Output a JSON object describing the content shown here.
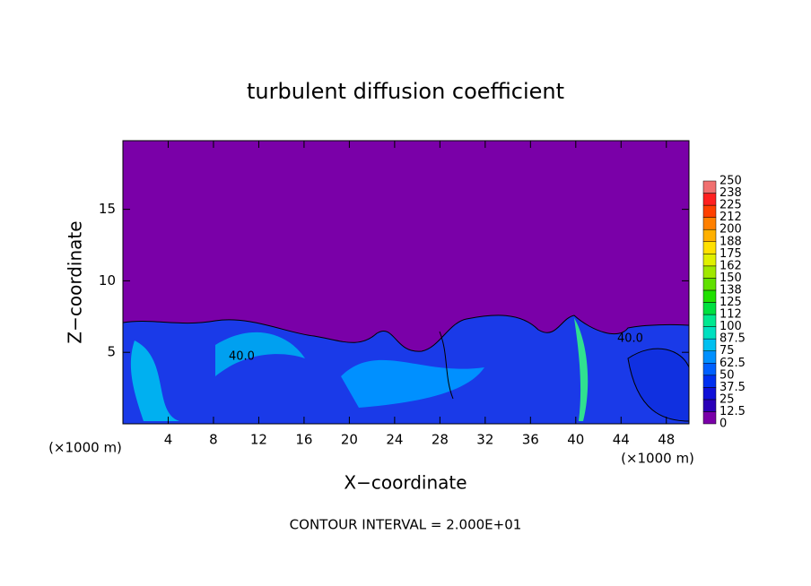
{
  "chart_data": {
    "type": "contour",
    "title": "turbulent diffusion coefficient",
    "x_label": "X−coordinate",
    "y_label": "Z−coordinate",
    "x_unit_left": "(×1000 m)",
    "x_unit_right": "(×1000 m)",
    "footnote": "CONTOUR INTERVAL = 2.000E+01",
    "contour_labels": [
      "40.0",
      "40.0"
    ],
    "xlim": [
      0,
      50
    ],
    "xticks": [
      4,
      8,
      12,
      16,
      20,
      24,
      28,
      32,
      36,
      40,
      44,
      48
    ],
    "ylim": [
      0,
      19.8
    ],
    "yticks": [
      5,
      10,
      15
    ],
    "colorbar_levels": [
      0,
      12.5,
      25,
      37.5,
      50,
      62.5,
      75,
      87.5,
      100,
      112,
      125,
      138,
      150,
      162,
      175,
      188,
      200,
      212,
      225,
      238,
      250
    ],
    "colorbar_colors": [
      "#7a00a8",
      "#2a00b8",
      "#1010d8",
      "#0030f0",
      "#0060ff",
      "#0090ff",
      "#00c0f0",
      "#00e0c0",
      "#00e890",
      "#00e040",
      "#20e000",
      "#60e000",
      "#a0e800",
      "#e0f000",
      "#ffe000",
      "#ffb000",
      "#ff8000",
      "#ff4000",
      "#ff2020",
      "#f07070"
    ]
  }
}
